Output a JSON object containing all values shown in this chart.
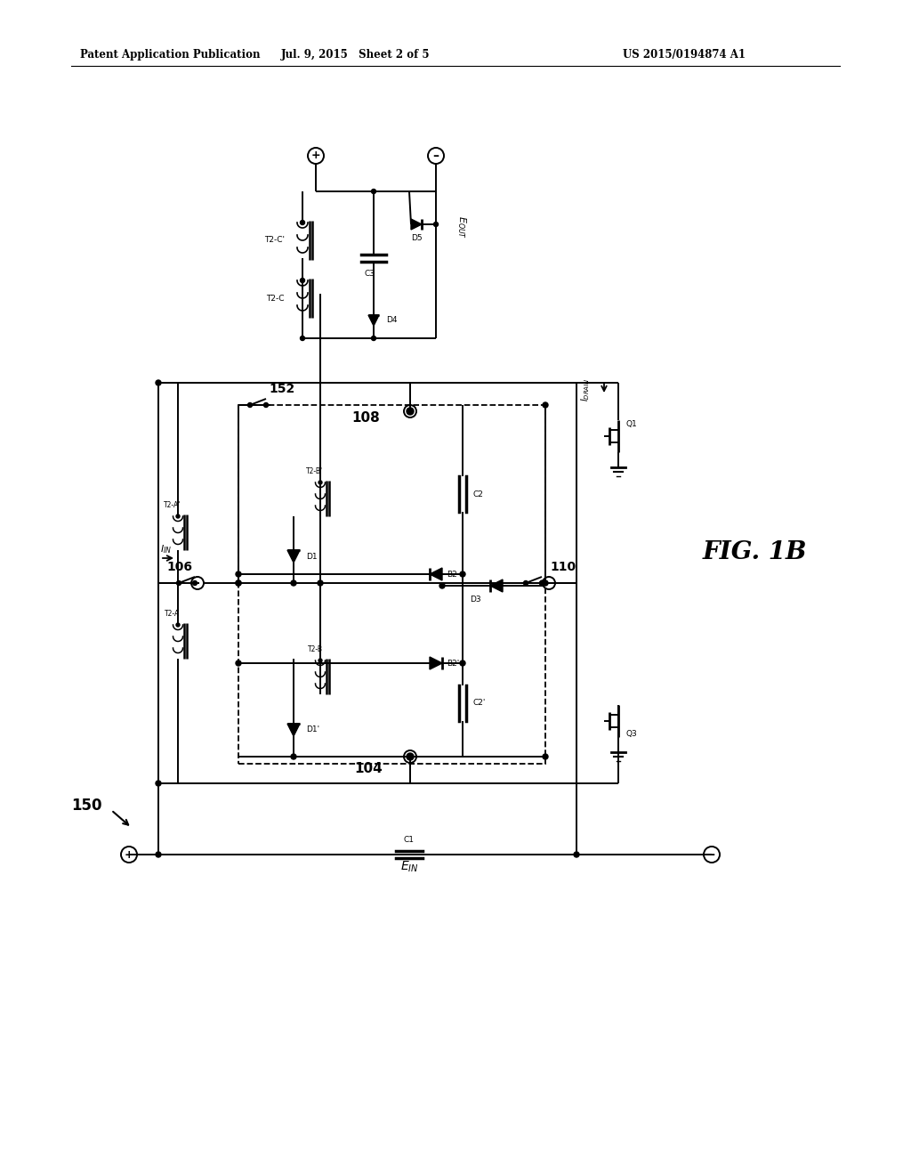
{
  "bg_color": "#ffffff",
  "header_left": "Patent Application Publication",
  "header_center": "Jul. 9, 2015   Sheet 2 of 5",
  "header_right": "US 2015/0194874 A1",
  "fig_label": "FIG. 1B",
  "label_150": "150",
  "label_104": "104",
  "label_106": "106",
  "label_108": "108",
  "label_110": "110",
  "label_152": "152"
}
